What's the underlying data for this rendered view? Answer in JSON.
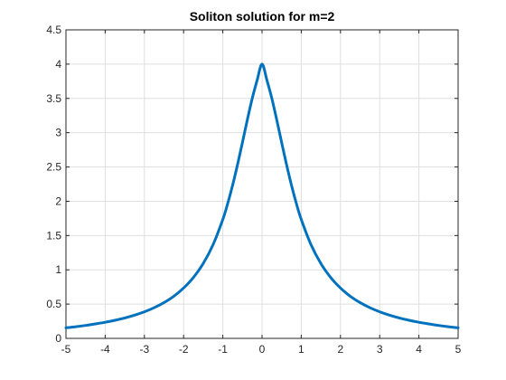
{
  "chart_data": {
    "type": "line",
    "title": "Soliton solution for m=2",
    "xlabel": "",
    "ylabel": "",
    "xlim": [
      -5,
      5
    ],
    "ylim": [
      0,
      4.5
    ],
    "xticks": [
      "-5",
      "-4",
      "-3",
      "-2",
      "-1",
      "0",
      "1",
      "2",
      "3",
      "4",
      "5"
    ],
    "yticks": [
      "0",
      "0.5",
      "1",
      "1.5",
      "2",
      "2.5",
      "3",
      "3.5",
      "4",
      "4.5"
    ],
    "grid": true,
    "legend": "none",
    "series": [
      {
        "color": "#0072BD",
        "x": [
          -5,
          -4.75,
          -4.5,
          -4.25,
          -4,
          -3.75,
          -3.5,
          -3.25,
          -3,
          -2.75,
          -2.5,
          -2.25,
          -2,
          -1.75,
          -1.5,
          -1.25,
          -1,
          -0.875,
          -0.75,
          -0.625,
          -0.5,
          -0.375,
          -0.25,
          -0.125,
          0,
          0.125,
          0.25,
          0.375,
          0.5,
          0.625,
          0.75,
          0.875,
          1,
          1.25,
          1.5,
          1.75,
          2,
          2.25,
          2.5,
          2.75,
          3,
          3.25,
          3.5,
          3.75,
          4,
          4.25,
          4.5,
          4.75,
          5
        ],
        "y": [
          0.154,
          0.17,
          0.189,
          0.211,
          0.235,
          0.264,
          0.298,
          0.339,
          0.388,
          0.448,
          0.522,
          0.615,
          0.735,
          0.889,
          1.092,
          1.365,
          1.735,
          1.968,
          2.235,
          2.534,
          2.857,
          3.188,
          3.5,
          3.765,
          4.0,
          3.765,
          3.5,
          3.188,
          2.857,
          2.534,
          2.235,
          1.968,
          1.735,
          1.365,
          1.092,
          0.889,
          0.735,
          0.615,
          0.522,
          0.448,
          0.388,
          0.339,
          0.298,
          0.264,
          0.235,
          0.211,
          0.189,
          0.17,
          0.154
        ]
      }
    ]
  },
  "colors": {
    "line": "#0072BD",
    "grid": "#dfdfdf",
    "axis": "#262626"
  }
}
